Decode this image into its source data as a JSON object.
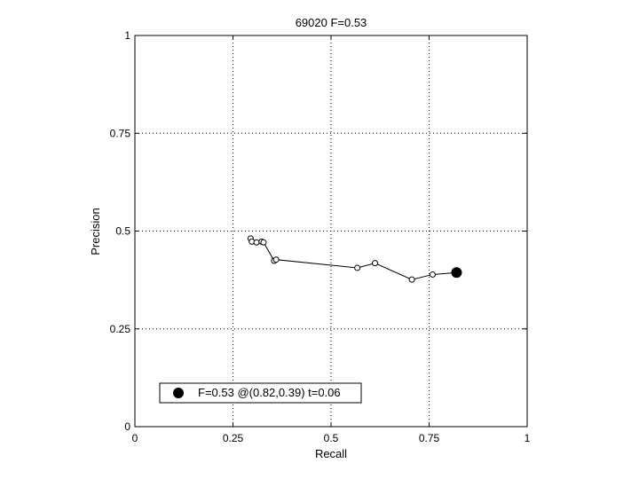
{
  "chart_data": {
    "type": "line",
    "title": "69020 F=0.53",
    "xlabel": "Recall",
    "ylabel": "Precision",
    "xlim": [
      0,
      1
    ],
    "ylim": [
      0,
      1
    ],
    "xticks": [
      0,
      0.25,
      0.5,
      0.75,
      1
    ],
    "yticks": [
      0,
      0.25,
      0.5,
      0.75,
      1
    ],
    "xtick_labels": [
      "0",
      "0.25",
      "0.5",
      "0.75",
      "1"
    ],
    "ytick_labels": [
      "0",
      "0.25",
      "0.5",
      "0.75",
      "1"
    ],
    "grid": true,
    "series": [
      {
        "x": [
          0.295,
          0.298,
          0.31,
          0.323,
          0.328,
          0.355,
          0.36,
          0.567,
          0.612,
          0.706,
          0.759,
          0.82
        ],
        "y": [
          0.481,
          0.473,
          0.471,
          0.473,
          0.471,
          0.424,
          0.427,
          0.406,
          0.418,
          0.376,
          0.389,
          0.394
        ]
      }
    ],
    "highlight_point": {
      "x": 0.82,
      "y": 0.394
    },
    "legend": {
      "text": "F=0.53 @(0.82,0.39) t=0.06",
      "location": "bottom-left"
    }
  }
}
